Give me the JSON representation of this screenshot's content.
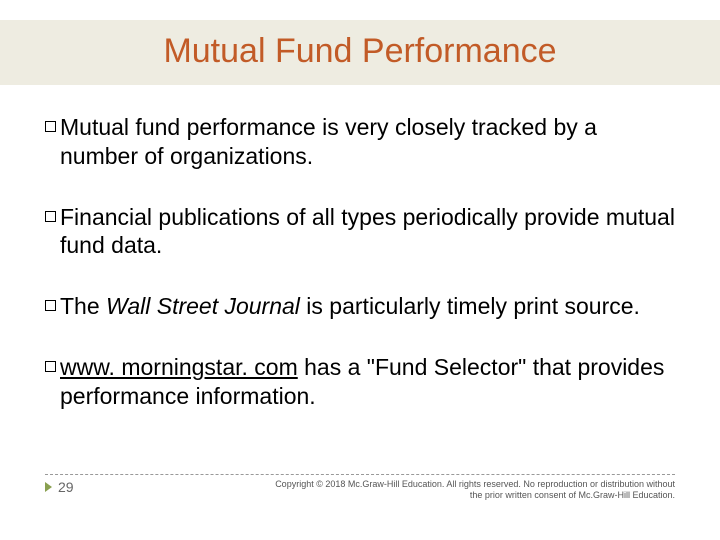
{
  "slide": {
    "title": "Mutual Fund Performance",
    "title_color": "#c25b27",
    "title_bg": "#eeece1",
    "title_fontsize": 34,
    "body_fontsize": 23,
    "bullets": [
      {
        "prefix": "Mutual",
        "rest": " fund performance is very closely tracked by a number of organizations."
      },
      {
        "prefix": "Financial",
        "rest": " publications of all types periodically provide mutual fund data."
      },
      {
        "prefix": "The",
        "italic": " Wall Street Journal",
        "rest": " is particularly timely print source."
      },
      {
        "underline_prefix": "www. morningstar. com",
        "rest": " has a \"Fund Selector\" that provides performance information."
      }
    ],
    "page_number": "29",
    "copyright_line1": "Copyright © 2018 Mc.Graw-Hill Education. All rights reserved. No reproduction or distribution without",
    "copyright_line2": "the prior written consent of Mc.Graw-Hill Education.",
    "marker_color": "#8aa050"
  }
}
